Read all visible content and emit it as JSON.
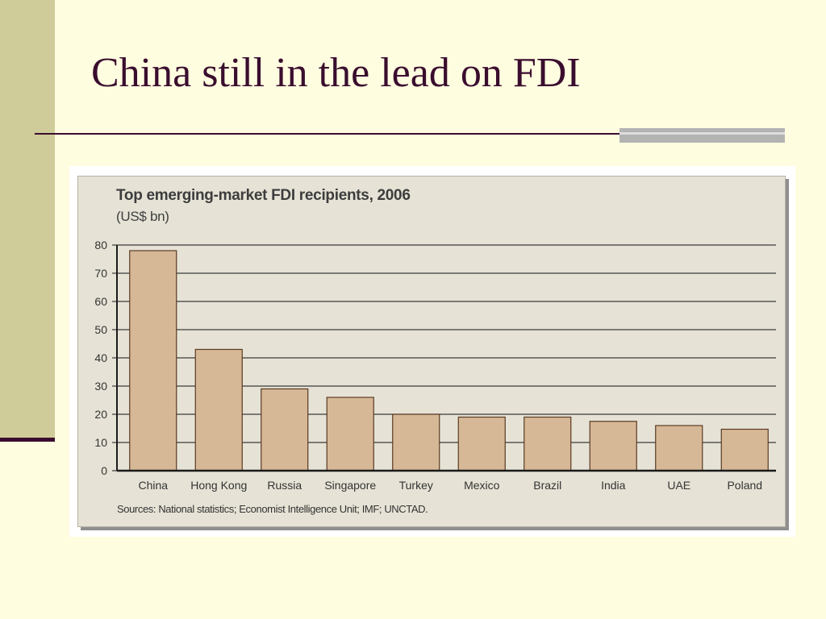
{
  "slide": {
    "title": "China still in the lead on FDI"
  },
  "colors": {
    "background": "#fffde0",
    "accent_bar": "#cfcc99",
    "title_color": "#3a0d2e",
    "bar_fill": "#d6b897",
    "bar_stroke": "#5a3a22",
    "panel": "#e6e3d6"
  },
  "chart_data": {
    "type": "bar",
    "title": "Top emerging-market FDI recipients, 2006",
    "subtitle": "(US$ bn)",
    "source": "Sources: National statistics; Economist Intelligence Unit; IMF; UNCTAD.",
    "categories": [
      "China",
      "Hong Kong",
      "Russia",
      "Singapore",
      "Turkey",
      "Mexico",
      "Brazil",
      "India",
      "UAE",
      "Poland"
    ],
    "values": [
      78,
      43,
      29,
      26,
      20,
      19,
      19,
      17.5,
      16,
      14.7
    ],
    "ylim": [
      0,
      80
    ],
    "yticks": [
      0,
      10,
      20,
      30,
      40,
      50,
      60,
      70,
      80
    ],
    "grid": true,
    "legend": "none"
  }
}
